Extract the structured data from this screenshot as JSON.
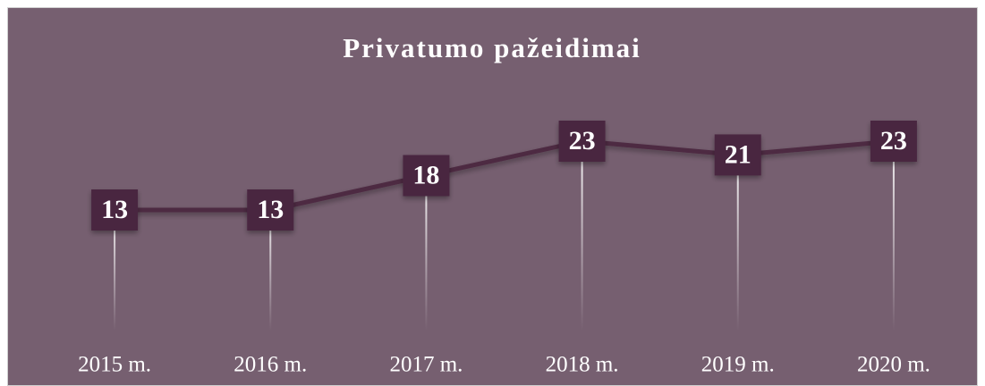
{
  "chart_data": {
    "type": "line",
    "title": "Privatumo pažeidimai",
    "categories": [
      "2015 m.",
      "2016 m.",
      "2017 m.",
      "2018 m.",
      "2019 m.",
      "2020 m."
    ],
    "values": [
      13,
      13,
      18,
      23,
      21,
      23
    ],
    "color": "#4d2a42"
  }
}
